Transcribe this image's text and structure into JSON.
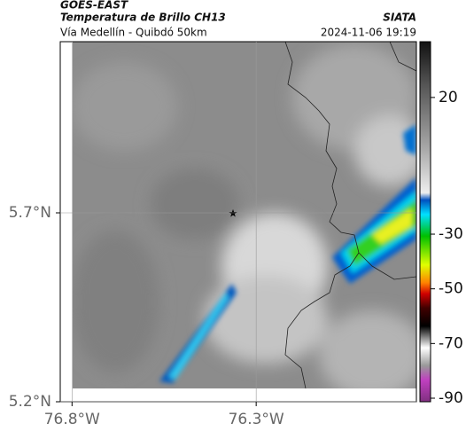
{
  "header": {
    "source": "GOES-EAST",
    "title": "Temperatura de Brillo CH13",
    "brand": "SIATA",
    "subtitle": "Vía Medellín - Quibdó 50km",
    "timestamp": "2024-11-06 19:19"
  },
  "map": {
    "lat_range": [
      5.2,
      6.153
    ],
    "lon_range": [
      -76.832,
      -75.865
    ],
    "lat_ticks": [
      {
        "value": 5.7,
        "label": "5.7°N"
      },
      {
        "value": 5.2,
        "label": "5.2°N"
      }
    ],
    "lon_ticks": [
      {
        "value": -76.8,
        "label": "76.8°W"
      },
      {
        "value": -76.3,
        "label": "76.3°W"
      }
    ],
    "grid": true
  },
  "colorbar": {
    "range": [
      -91.3,
      40.4
    ],
    "ticks": [
      20,
      -30,
      -50,
      -70,
      -90
    ]
  }
}
